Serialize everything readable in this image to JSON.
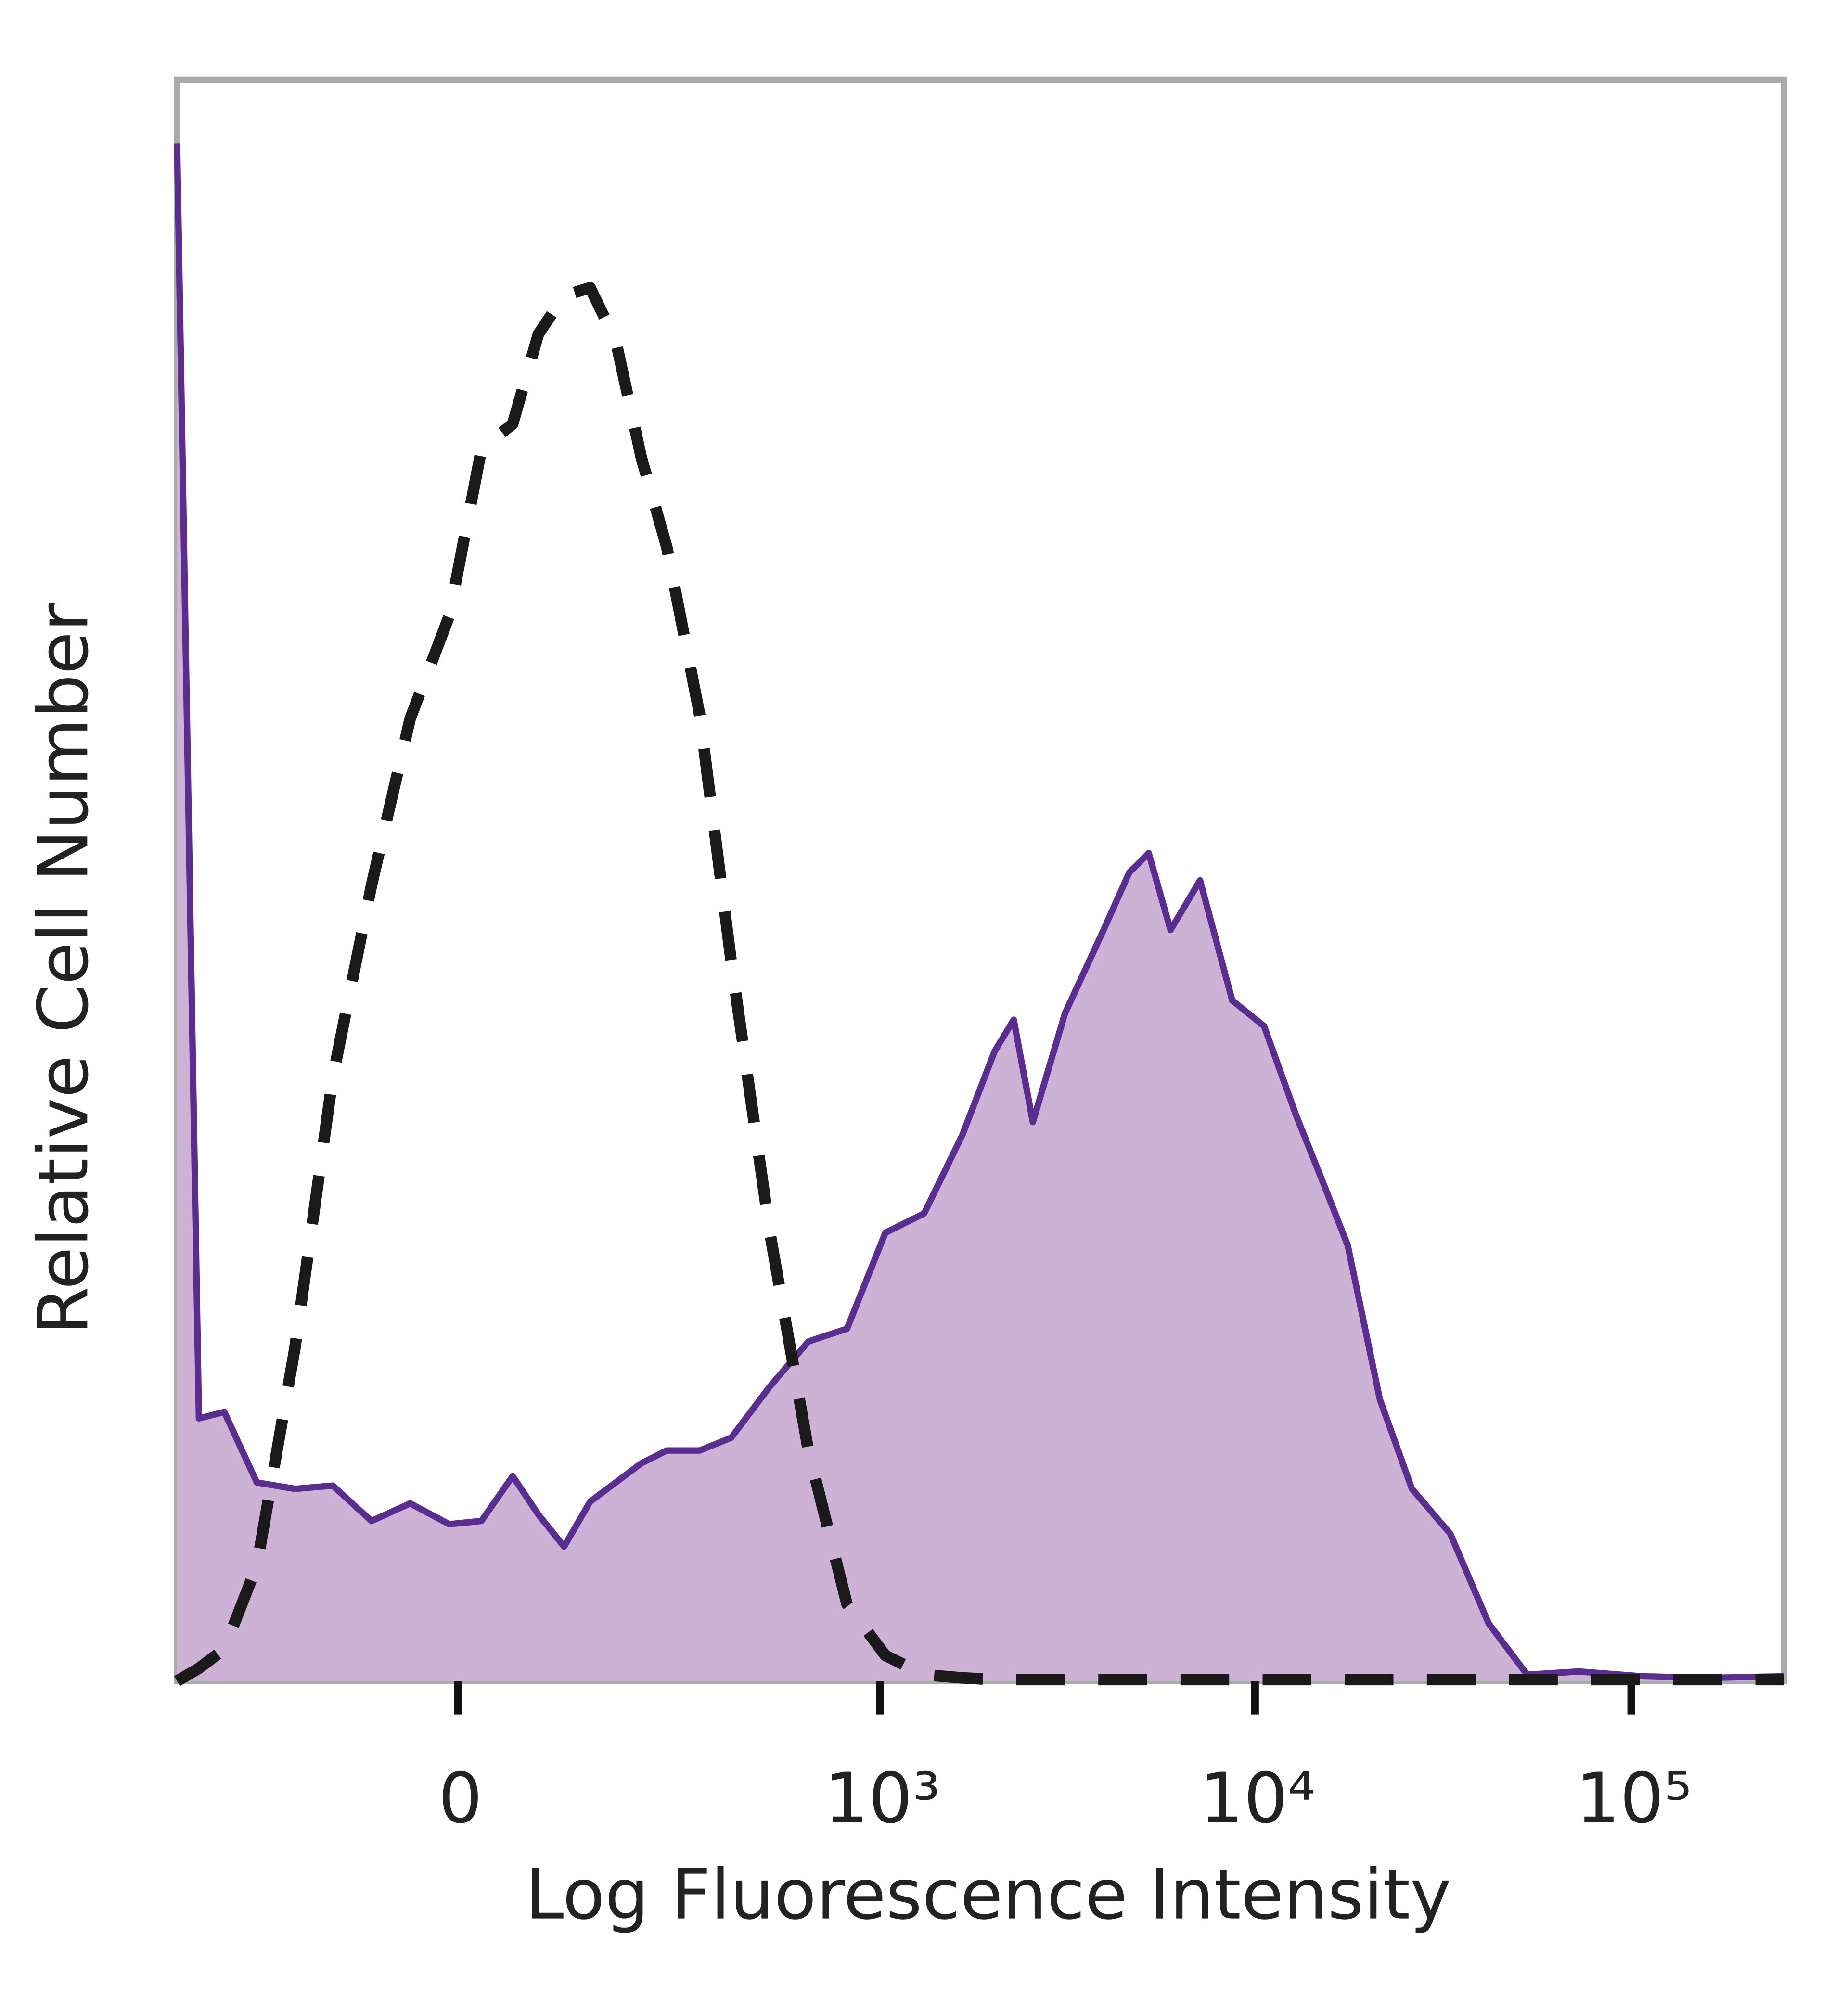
{
  "chart_data": {
    "type": "histogram",
    "xlabel": "Log Fluorescence Intensity",
    "ylabel": "Relative Cell Number",
    "xscale": "biexponential",
    "xlim": [
      -410,
      254500
    ],
    "ylim": [
      0,
      100
    ],
    "xticks": [
      0,
      {
        "value": 1000,
        "label": "10³"
      },
      {
        "value": 10000,
        "label": "10⁴"
      },
      {
        "value": 100000,
        "label": "10⁵"
      }
    ],
    "x": [
      -410,
      -355,
      -299,
      -238,
      -178,
      -128,
      -84,
      -45,
      -8,
      22,
      52,
      78,
      106,
      137,
      171,
      209,
      252,
      317,
      391,
      502,
      641,
      816,
      1035,
      1315,
      1664,
      2026,
      2280,
      2565,
      3124,
      3955,
      4633,
      5215,
      5960,
      7140,
      8700,
      10570,
      12870,
      15060,
      17640,
      21470,
      26120,
      33050,
      41800,
      52900,
      72500,
      107300,
      159000,
      254500
    ],
    "series": [
      {
        "color": "#5b2d91",
        "fill": "#cdb2d6",
        "style": "solid",
        "values": [
          96,
          16.4,
          16.8,
          12.4,
          12.0,
          12.2,
          10.0,
          11.1,
          9.8,
          10.0,
          12.8,
          10.4,
          8.4,
          11.2,
          12.4,
          13.6,
          14.4,
          14.4,
          15.2,
          18.4,
          21.2,
          22.0,
          28.0,
          29.2,
          34.1,
          39.3,
          41.3,
          34.9,
          41.7,
          46.9,
          50.5,
          51.7,
          46.9,
          50.0,
          42.5,
          40.9,
          35.3,
          31.3,
          27.2,
          17.6,
          12.0,
          9.2,
          3.6,
          0.4,
          0.6,
          0.3,
          0.2,
          0.3
        ]
      },
      {
        "color": "#1a1a1a",
        "style": "dashed",
        "values": [
          0,
          0.8,
          2.0,
          7.2,
          20.8,
          37.7,
          49.7,
          60.1,
          66.5,
          76.9,
          78.5,
          84.1,
          86.5,
          87.0,
          83.7,
          76.4,
          70.8,
          60.3,
          44.9,
          28.0,
          14.4,
          4.8,
          1.6,
          0.4,
          0.2,
          0.1,
          0.1,
          0.1,
          0.1,
          0.1,
          0.1,
          0.1,
          0.1,
          0.1,
          0.1,
          0.1,
          0.1,
          0.1,
          0.1,
          0.1,
          0.1,
          0.1,
          0.1,
          0.1,
          0.1,
          0.1,
          0.1,
          0.1
        ]
      }
    ]
  }
}
